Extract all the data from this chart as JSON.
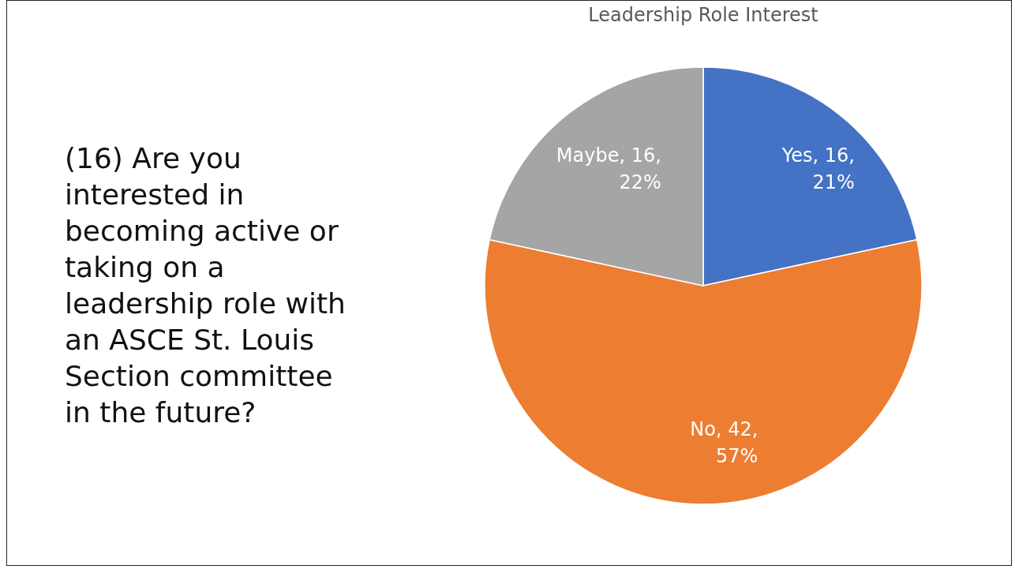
{
  "chart_data": {
    "type": "pie",
    "title": "Leadership Role Interest",
    "categories": [
      "Yes",
      "No",
      "Maybe"
    ],
    "values": [
      16,
      42,
      16
    ],
    "colors": [
      "#4472c4",
      "#ed7d31",
      "#a5a5a5"
    ],
    "value_labels": [
      ", 16, 21%",
      ", 42, 57%",
      ", 16, 22%"
    ],
    "legend": false,
    "annotations": [
      "(16) Are you interested in becoming active or taking on a leadership role with an ASCE St. Louis Section committee in the future?"
    ]
  }
}
